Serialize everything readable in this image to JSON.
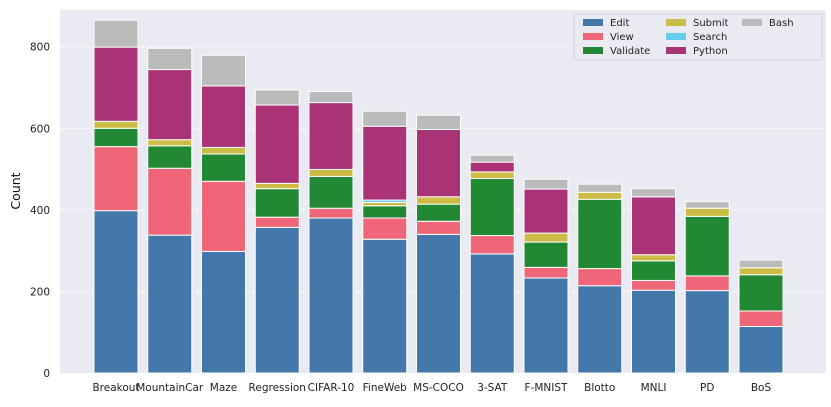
{
  "chart_data": {
    "type": "bar",
    "stacked": true,
    "title": "",
    "xlabel": "",
    "ylabel": "Count",
    "ylim": [
      0,
      890
    ],
    "yticks": [
      0,
      200,
      400,
      600,
      800
    ],
    "grid": true,
    "legend_position": "top-right",
    "categories": [
      "Breakout",
      "MountainCar",
      "Maze",
      "Regression",
      "CIFAR-10",
      "FineWeb",
      "MS-COCO",
      "3-SAT",
      "F-MNIST",
      "Blotto",
      "MNLI",
      "PD",
      "BoS"
    ],
    "series": [
      {
        "name": "Edit",
        "color": "#4477aa",
        "values": [
          398,
          338,
          298,
          357,
          380,
          328,
          340,
          292,
          233,
          214,
          203,
          202,
          114
        ]
      },
      {
        "name": "View",
        "color": "#ee6677",
        "values": [
          157,
          164,
          172,
          25,
          24,
          52,
          32,
          45,
          26,
          42,
          24,
          36,
          38
        ]
      },
      {
        "name": "Validate",
        "color": "#228833",
        "values": [
          45,
          55,
          67,
          70,
          78,
          30,
          42,
          140,
          62,
          170,
          48,
          146,
          89
        ]
      },
      {
        "name": "Submit",
        "color": "#ccbb44",
        "values": [
          17,
          15,
          16,
          13,
          17,
          8,
          18,
          16,
          22,
          17,
          15,
          20,
          17
        ]
      },
      {
        "name": "Search",
        "color": "#66ccee",
        "values": [
          0,
          0,
          0,
          0,
          0,
          6,
          0,
          0,
          0,
          0,
          0,
          0,
          0
        ]
      },
      {
        "name": "Python",
        "color": "#aa3377",
        "values": [
          182,
          172,
          151,
          192,
          164,
          181,
          165,
          24,
          108,
          0,
          142,
          0,
          0
        ]
      },
      {
        "name": "Bash",
        "color": "#bbbbbb",
        "values": [
          66,
          52,
          75,
          37,
          27,
          37,
          35,
          17,
          24,
          20,
          20,
          16,
          19
        ]
      }
    ]
  }
}
